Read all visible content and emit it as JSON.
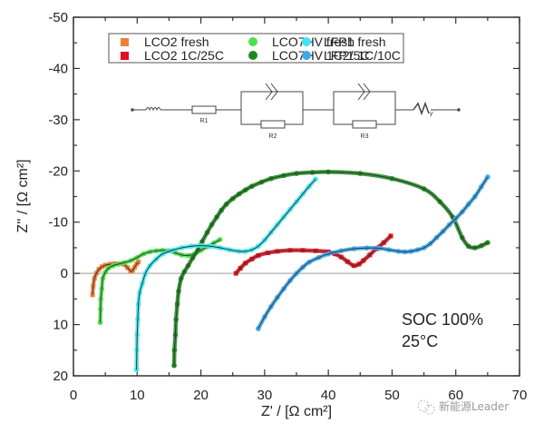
{
  "chart_data": {
    "type": "scatter",
    "title": "",
    "xlabel": "Z' / [Ω cm²]",
    "ylabel": "Z'' / [Ω cm²]",
    "xlim": [
      0,
      70
    ],
    "ylim": [
      20,
      -50
    ],
    "y_inverted": true,
    "x_ticks": [
      "0",
      "10",
      "20",
      "30",
      "40",
      "50",
      "60",
      "70"
    ],
    "x_tick_values": [
      0,
      10,
      20,
      30,
      40,
      50,
      60,
      70
    ],
    "y_ticks": [
      "-50",
      "-40",
      "-30",
      "-20",
      "-10",
      "0",
      "10",
      "20"
    ],
    "y_tick_values": [
      -50,
      -40,
      -30,
      -20,
      -10,
      0,
      10,
      20
    ],
    "grid": false,
    "zero_line": true,
    "legend_placement": "top",
    "fit_line_color": "#333333",
    "series": [
      {
        "name": "LCO2 fresh",
        "marker": "square",
        "color": "#f07f3a",
        "points": [
          [
            3.0,
            4.2
          ],
          [
            3.1,
            2.5
          ],
          [
            3.3,
            1.0
          ],
          [
            3.6,
            0.0
          ],
          [
            4.0,
            -0.8
          ],
          [
            4.5,
            -1.3
          ],
          [
            5.0,
            -1.6
          ],
          [
            5.8,
            -1.8
          ],
          [
            6.5,
            -1.9
          ],
          [
            7.3,
            -1.9
          ],
          [
            8.0,
            -1.7
          ],
          [
            8.5,
            -1.1
          ],
          [
            9.0,
            -0.4
          ],
          [
            9.3,
            -0.6
          ],
          [
            9.6,
            -1.2
          ],
          [
            9.9,
            -1.8
          ],
          [
            10.2,
            -2.2
          ]
        ]
      },
      {
        "name": "LCO2 1C/25C",
        "marker": "square",
        "color": "#e3101e",
        "points": [
          [
            25.5,
            0.0
          ],
          [
            26.2,
            -1.0
          ],
          [
            27.0,
            -2.0
          ],
          [
            28.0,
            -2.8
          ],
          [
            29.0,
            -3.5
          ],
          [
            30.5,
            -4.0
          ],
          [
            32.0,
            -4.3
          ],
          [
            34.0,
            -4.5
          ],
          [
            36.0,
            -4.5
          ],
          [
            38.0,
            -4.4
          ],
          [
            40.0,
            -4.2
          ],
          [
            41.0,
            -3.8
          ],
          [
            42.0,
            -3.2
          ],
          [
            43.0,
            -2.3
          ],
          [
            44.0,
            -1.5
          ],
          [
            44.8,
            -1.8
          ],
          [
            45.5,
            -2.5
          ],
          [
            46.5,
            -3.6
          ],
          [
            47.5,
            -4.8
          ],
          [
            48.7,
            -6.0
          ],
          [
            49.8,
            -7.3
          ]
        ]
      },
      {
        "name": "LCO7HV fresh",
        "marker": "circle",
        "color": "#4be04b",
        "points": [
          [
            4.2,
            9.6
          ],
          [
            4.25,
            7.0
          ],
          [
            4.3,
            5.0
          ],
          [
            4.45,
            3.0
          ],
          [
            4.6,
            1.0
          ],
          [
            5.0,
            -0.2
          ],
          [
            5.5,
            -1.0
          ],
          [
            6.2,
            -1.5
          ],
          [
            7.0,
            -1.8
          ],
          [
            8.0,
            -2.1
          ],
          [
            9.0,
            -2.5
          ],
          [
            10.0,
            -3.1
          ],
          [
            11.0,
            -3.8
          ],
          [
            12.0,
            -4.2
          ],
          [
            13.0,
            -4.4
          ],
          [
            14.0,
            -4.5
          ],
          [
            15.0,
            -4.4
          ],
          [
            16.0,
            -4.0
          ],
          [
            17.0,
            -3.6
          ],
          [
            18.0,
            -3.5
          ],
          [
            19.0,
            -3.8
          ],
          [
            20.0,
            -4.5
          ],
          [
            21.0,
            -5.2
          ],
          [
            22.0,
            -5.9
          ],
          [
            23.0,
            -6.6
          ]
        ]
      },
      {
        "name": "LCO7HV 1C2/5C",
        "marker": "circle",
        "color": "#1e8a1e",
        "points": [
          [
            15.8,
            18.0
          ],
          [
            15.85,
            15.0
          ],
          [
            16.0,
            12.0
          ],
          [
            16.1,
            9.0
          ],
          [
            16.3,
            6.0
          ],
          [
            16.5,
            3.5
          ],
          [
            16.9,
            1.0
          ],
          [
            17.4,
            -0.3
          ],
          [
            18.0,
            -1.5
          ],
          [
            18.7,
            -3.0
          ],
          [
            19.5,
            -4.5
          ],
          [
            20.2,
            -6.2
          ],
          [
            21.0,
            -8.0
          ],
          [
            21.7,
            -9.5
          ],
          [
            22.5,
            -11.0
          ],
          [
            23.2,
            -12.3
          ],
          [
            24.0,
            -13.5
          ],
          [
            25.0,
            -14.6
          ],
          [
            26.0,
            -15.5
          ],
          [
            27.0,
            -16.3
          ],
          [
            28.0,
            -17.0
          ],
          [
            29.5,
            -17.8
          ],
          [
            31.0,
            -18.5
          ],
          [
            33.0,
            -19.1
          ],
          [
            35.0,
            -19.5
          ],
          [
            37.5,
            -19.7
          ],
          [
            40.0,
            -19.8
          ],
          [
            45.0,
            -19.5
          ],
          [
            50.0,
            -18.5
          ],
          [
            55.0,
            -16.5
          ],
          [
            57.5,
            -14.0
          ],
          [
            59.5,
            -11.0
          ],
          [
            61.0,
            -7.0
          ],
          [
            62.0,
            -5.3
          ],
          [
            63.0,
            -5.0
          ],
          [
            64.0,
            -5.4
          ],
          [
            65.0,
            -6.0
          ]
        ]
      },
      {
        "name": "LFP1 fresh",
        "marker": "circle",
        "color": "#3fe6f0",
        "points": [
          [
            9.9,
            18.8
          ],
          [
            9.95,
            15.0
          ],
          [
            10.0,
            12.0
          ],
          [
            10.1,
            9.0
          ],
          [
            10.2,
            6.0
          ],
          [
            10.4,
            3.8
          ],
          [
            10.8,
            2.0
          ],
          [
            11.3,
            0.0
          ],
          [
            12.0,
            -1.5
          ],
          [
            13.0,
            -2.8
          ],
          [
            14.0,
            -3.8
          ],
          [
            15.5,
            -4.5
          ],
          [
            17.0,
            -5.0
          ],
          [
            18.5,
            -5.3
          ],
          [
            20.0,
            -5.4
          ],
          [
            21.5,
            -5.3
          ],
          [
            23.0,
            -5.0
          ],
          [
            24.5,
            -4.6
          ],
          [
            26.0,
            -4.3
          ],
          [
            27.0,
            -4.3
          ],
          [
            28.0,
            -4.6
          ],
          [
            29.0,
            -5.3
          ],
          [
            30.0,
            -6.5
          ],
          [
            31.0,
            -8.0
          ],
          [
            32.0,
            -9.5
          ],
          [
            33.0,
            -11.0
          ],
          [
            34.0,
            -12.5
          ],
          [
            35.0,
            -14.0
          ],
          [
            36.0,
            -15.5
          ],
          [
            37.0,
            -17.0
          ],
          [
            38.0,
            -18.4
          ]
        ]
      },
      {
        "name": "LFP1 1C/10C",
        "marker": "circle",
        "color": "#3ea8ec",
        "points": [
          [
            29.0,
            10.8
          ],
          [
            30.0,
            8.5
          ],
          [
            31.0,
            6.5
          ],
          [
            32.0,
            4.7
          ],
          [
            33.0,
            3.0
          ],
          [
            34.0,
            1.4
          ],
          [
            35.0,
            0.0
          ],
          [
            36.0,
            -1.2
          ],
          [
            37.0,
            -2.2
          ],
          [
            38.5,
            -3.1
          ],
          [
            40.0,
            -3.8
          ],
          [
            42.0,
            -4.4
          ],
          [
            44.0,
            -4.8
          ],
          [
            46.0,
            -4.95
          ],
          [
            48.0,
            -4.9
          ],
          [
            49.5,
            -4.6
          ],
          [
            51.0,
            -4.3
          ],
          [
            52.0,
            -4.2
          ],
          [
            53.0,
            -4.3
          ],
          [
            54.0,
            -4.6
          ],
          [
            55.0,
            -5.0
          ],
          [
            56.0,
            -5.8
          ],
          [
            57.0,
            -7.0
          ],
          [
            58.0,
            -8.2
          ],
          [
            59.0,
            -9.5
          ],
          [
            60.0,
            -10.7
          ],
          [
            61.0,
            -12.0
          ],
          [
            62.0,
            -13.5
          ],
          [
            63.0,
            -15.0
          ],
          [
            64.0,
            -16.9
          ],
          [
            65.0,
            -18.8
          ]
        ]
      }
    ],
    "inset_circuit": {
      "elements": [
        "inductor",
        "R1",
        "R2 || CPE",
        "R3 || CPE",
        "Warburg"
      ],
      "labels": [
        "R1",
        "R2",
        "R3"
      ],
      "warburg_label": "W",
      "warburg_subscript": "γ"
    },
    "annotations": [
      "SOC 100%",
      "25°C"
    ]
  },
  "legend": {
    "items": [
      {
        "label": "LCO2 fresh"
      },
      {
        "label": "LCO2 1C/25C"
      },
      {
        "label": "LCO7HV fresh"
      },
      {
        "label": "LCO7HV 1C2/5C"
      },
      {
        "label": "LFP1 fresh"
      },
      {
        "label": "LFP1 1C/10C"
      }
    ]
  },
  "watermark": {
    "text": "新能源Leader"
  }
}
